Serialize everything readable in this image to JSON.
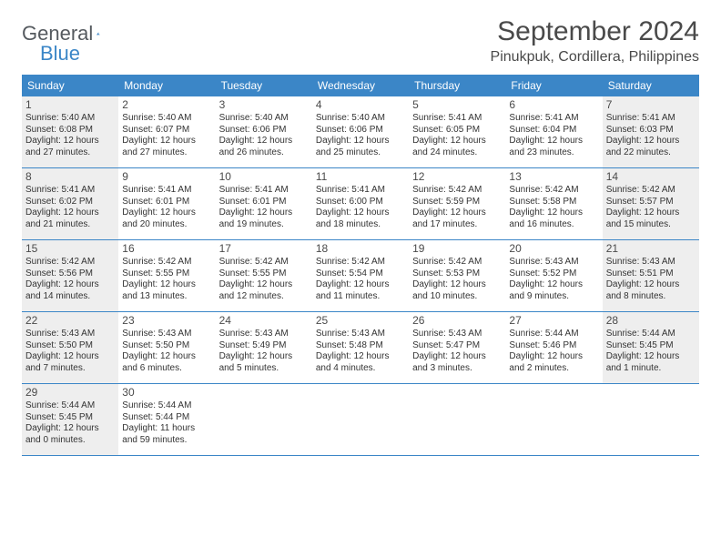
{
  "logo": {
    "text_general": "General",
    "text_blue": "Blue"
  },
  "header": {
    "month_title": "September 2024",
    "location": "Pinukpuk, Cordillera, Philippines"
  },
  "colors": {
    "header_bg": "#3b86c7",
    "header_text": "#ffffff",
    "shaded_bg": "#eeeeee",
    "text": "#333333",
    "border": "#3b86c7"
  },
  "day_names": [
    "Sunday",
    "Monday",
    "Tuesday",
    "Wednesday",
    "Thursday",
    "Friday",
    "Saturday"
  ],
  "weeks": [
    [
      {
        "num": "1",
        "shaded": true,
        "sunrise": "Sunrise: 5:40 AM",
        "sunset": "Sunset: 6:08 PM",
        "daylight1": "Daylight: 12 hours",
        "daylight2": "and 27 minutes."
      },
      {
        "num": "2",
        "shaded": false,
        "sunrise": "Sunrise: 5:40 AM",
        "sunset": "Sunset: 6:07 PM",
        "daylight1": "Daylight: 12 hours",
        "daylight2": "and 27 minutes."
      },
      {
        "num": "3",
        "shaded": false,
        "sunrise": "Sunrise: 5:40 AM",
        "sunset": "Sunset: 6:06 PM",
        "daylight1": "Daylight: 12 hours",
        "daylight2": "and 26 minutes."
      },
      {
        "num": "4",
        "shaded": false,
        "sunrise": "Sunrise: 5:40 AM",
        "sunset": "Sunset: 6:06 PM",
        "daylight1": "Daylight: 12 hours",
        "daylight2": "and 25 minutes."
      },
      {
        "num": "5",
        "shaded": false,
        "sunrise": "Sunrise: 5:41 AM",
        "sunset": "Sunset: 6:05 PM",
        "daylight1": "Daylight: 12 hours",
        "daylight2": "and 24 minutes."
      },
      {
        "num": "6",
        "shaded": false,
        "sunrise": "Sunrise: 5:41 AM",
        "sunset": "Sunset: 6:04 PM",
        "daylight1": "Daylight: 12 hours",
        "daylight2": "and 23 minutes."
      },
      {
        "num": "7",
        "shaded": true,
        "sunrise": "Sunrise: 5:41 AM",
        "sunset": "Sunset: 6:03 PM",
        "daylight1": "Daylight: 12 hours",
        "daylight2": "and 22 minutes."
      }
    ],
    [
      {
        "num": "8",
        "shaded": true,
        "sunrise": "Sunrise: 5:41 AM",
        "sunset": "Sunset: 6:02 PM",
        "daylight1": "Daylight: 12 hours",
        "daylight2": "and 21 minutes."
      },
      {
        "num": "9",
        "shaded": false,
        "sunrise": "Sunrise: 5:41 AM",
        "sunset": "Sunset: 6:01 PM",
        "daylight1": "Daylight: 12 hours",
        "daylight2": "and 20 minutes."
      },
      {
        "num": "10",
        "shaded": false,
        "sunrise": "Sunrise: 5:41 AM",
        "sunset": "Sunset: 6:01 PM",
        "daylight1": "Daylight: 12 hours",
        "daylight2": "and 19 minutes."
      },
      {
        "num": "11",
        "shaded": false,
        "sunrise": "Sunrise: 5:41 AM",
        "sunset": "Sunset: 6:00 PM",
        "daylight1": "Daylight: 12 hours",
        "daylight2": "and 18 minutes."
      },
      {
        "num": "12",
        "shaded": false,
        "sunrise": "Sunrise: 5:42 AM",
        "sunset": "Sunset: 5:59 PM",
        "daylight1": "Daylight: 12 hours",
        "daylight2": "and 17 minutes."
      },
      {
        "num": "13",
        "shaded": false,
        "sunrise": "Sunrise: 5:42 AM",
        "sunset": "Sunset: 5:58 PM",
        "daylight1": "Daylight: 12 hours",
        "daylight2": "and 16 minutes."
      },
      {
        "num": "14",
        "shaded": true,
        "sunrise": "Sunrise: 5:42 AM",
        "sunset": "Sunset: 5:57 PM",
        "daylight1": "Daylight: 12 hours",
        "daylight2": "and 15 minutes."
      }
    ],
    [
      {
        "num": "15",
        "shaded": true,
        "sunrise": "Sunrise: 5:42 AM",
        "sunset": "Sunset: 5:56 PM",
        "daylight1": "Daylight: 12 hours",
        "daylight2": "and 14 minutes."
      },
      {
        "num": "16",
        "shaded": false,
        "sunrise": "Sunrise: 5:42 AM",
        "sunset": "Sunset: 5:55 PM",
        "daylight1": "Daylight: 12 hours",
        "daylight2": "and 13 minutes."
      },
      {
        "num": "17",
        "shaded": false,
        "sunrise": "Sunrise: 5:42 AM",
        "sunset": "Sunset: 5:55 PM",
        "daylight1": "Daylight: 12 hours",
        "daylight2": "and 12 minutes."
      },
      {
        "num": "18",
        "shaded": false,
        "sunrise": "Sunrise: 5:42 AM",
        "sunset": "Sunset: 5:54 PM",
        "daylight1": "Daylight: 12 hours",
        "daylight2": "and 11 minutes."
      },
      {
        "num": "19",
        "shaded": false,
        "sunrise": "Sunrise: 5:42 AM",
        "sunset": "Sunset: 5:53 PM",
        "daylight1": "Daylight: 12 hours",
        "daylight2": "and 10 minutes."
      },
      {
        "num": "20",
        "shaded": false,
        "sunrise": "Sunrise: 5:43 AM",
        "sunset": "Sunset: 5:52 PM",
        "daylight1": "Daylight: 12 hours",
        "daylight2": "and 9 minutes."
      },
      {
        "num": "21",
        "shaded": true,
        "sunrise": "Sunrise: 5:43 AM",
        "sunset": "Sunset: 5:51 PM",
        "daylight1": "Daylight: 12 hours",
        "daylight2": "and 8 minutes."
      }
    ],
    [
      {
        "num": "22",
        "shaded": true,
        "sunrise": "Sunrise: 5:43 AM",
        "sunset": "Sunset: 5:50 PM",
        "daylight1": "Daylight: 12 hours",
        "daylight2": "and 7 minutes."
      },
      {
        "num": "23",
        "shaded": false,
        "sunrise": "Sunrise: 5:43 AM",
        "sunset": "Sunset: 5:50 PM",
        "daylight1": "Daylight: 12 hours",
        "daylight2": "and 6 minutes."
      },
      {
        "num": "24",
        "shaded": false,
        "sunrise": "Sunrise: 5:43 AM",
        "sunset": "Sunset: 5:49 PM",
        "daylight1": "Daylight: 12 hours",
        "daylight2": "and 5 minutes."
      },
      {
        "num": "25",
        "shaded": false,
        "sunrise": "Sunrise: 5:43 AM",
        "sunset": "Sunset: 5:48 PM",
        "daylight1": "Daylight: 12 hours",
        "daylight2": "and 4 minutes."
      },
      {
        "num": "26",
        "shaded": false,
        "sunrise": "Sunrise: 5:43 AM",
        "sunset": "Sunset: 5:47 PM",
        "daylight1": "Daylight: 12 hours",
        "daylight2": "and 3 minutes."
      },
      {
        "num": "27",
        "shaded": false,
        "sunrise": "Sunrise: 5:44 AM",
        "sunset": "Sunset: 5:46 PM",
        "daylight1": "Daylight: 12 hours",
        "daylight2": "and 2 minutes."
      },
      {
        "num": "28",
        "shaded": true,
        "sunrise": "Sunrise: 5:44 AM",
        "sunset": "Sunset: 5:45 PM",
        "daylight1": "Daylight: 12 hours",
        "daylight2": "and 1 minute."
      }
    ],
    [
      {
        "num": "29",
        "shaded": true,
        "sunrise": "Sunrise: 5:44 AM",
        "sunset": "Sunset: 5:45 PM",
        "daylight1": "Daylight: 12 hours",
        "daylight2": "and 0 minutes."
      },
      {
        "num": "30",
        "shaded": false,
        "sunrise": "Sunrise: 5:44 AM",
        "sunset": "Sunset: 5:44 PM",
        "daylight1": "Daylight: 11 hours",
        "daylight2": "and 59 minutes."
      },
      {
        "empty": true
      },
      {
        "empty": true
      },
      {
        "empty": true
      },
      {
        "empty": true
      },
      {
        "empty": true
      }
    ]
  ]
}
